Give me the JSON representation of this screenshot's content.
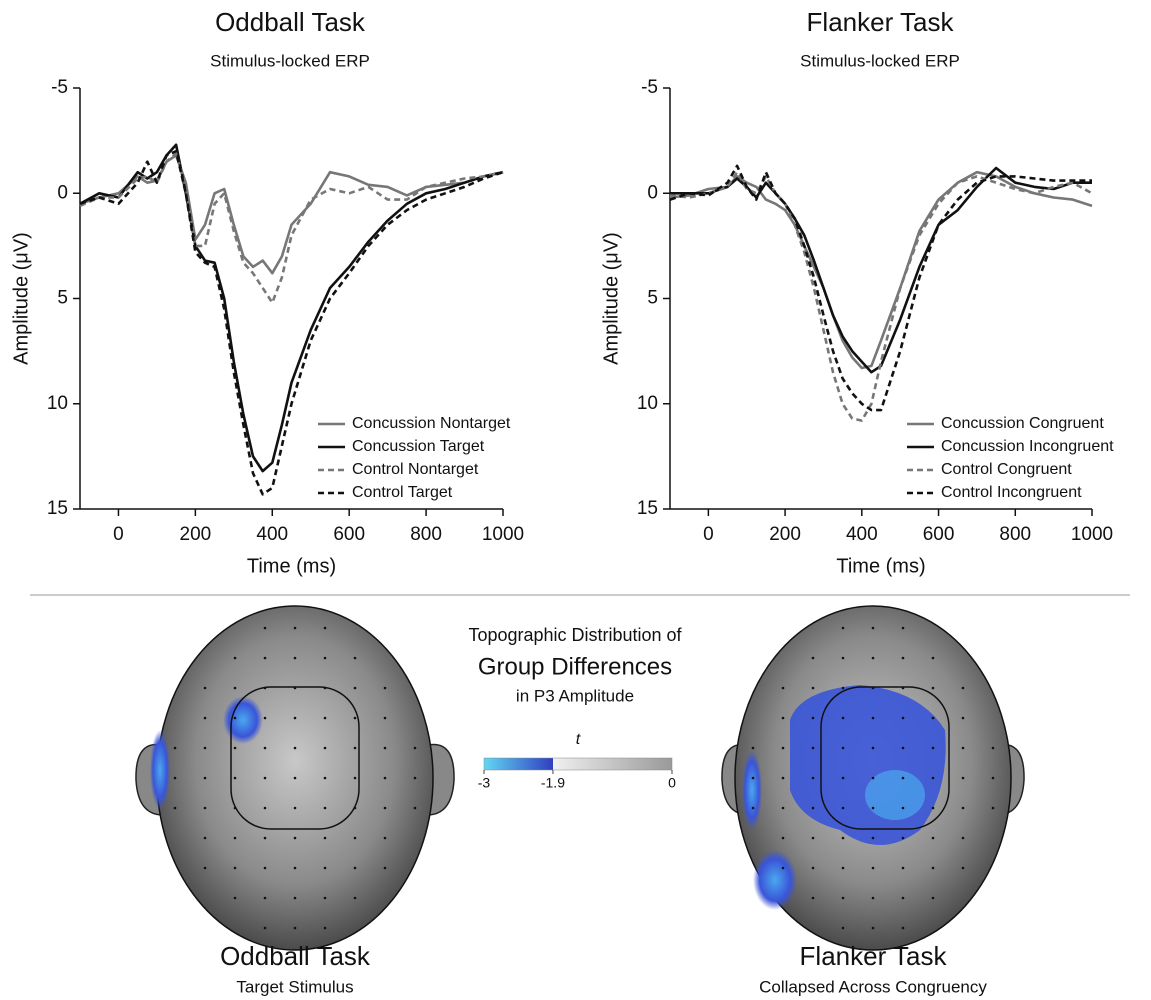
{
  "chart_data": [
    {
      "type": "line",
      "title": "Oddball Task",
      "subtitle": "Stimulus-locked ERP",
      "x_label": "Time (ms)",
      "y_label": "Amplitude (μV)",
      "xlim": [
        -100,
        1000
      ],
      "xticks": [
        0,
        200,
        400,
        600,
        800,
        1000
      ],
      "ylim": [
        -5,
        15
      ],
      "yticks": [
        -5,
        0,
        5,
        10,
        15
      ],
      "y_inverted": true,
      "legend": "lower right",
      "x": [
        -100,
        -50,
        0,
        50,
        75,
        100,
        125,
        150,
        175,
        200,
        225,
        250,
        275,
        300,
        325,
        350,
        375,
        400,
        425,
        450,
        500,
        550,
        600,
        650,
        700,
        750,
        800,
        850,
        900,
        950,
        1000
      ],
      "series": [
        {
          "name": "Concussion Nontarget",
          "color": "#777777",
          "style": "solid",
          "values": [
            0.5,
            0.2,
            0,
            -0.8,
            -0.5,
            -0.6,
            -1.5,
            -1.8,
            -0.5,
            2.2,
            1.5,
            0,
            -0.2,
            1.5,
            3.0,
            3.5,
            3.2,
            3.8,
            3.0,
            1.5,
            0.5,
            -1.0,
            -0.8,
            -0.4,
            -0.3,
            0.1,
            -0.3,
            -0.4,
            -0.5,
            -0.8,
            -1.0
          ]
        },
        {
          "name": "Concussion Target",
          "color": "#111111",
          "style": "solid",
          "values": [
            0.5,
            0,
            0.2,
            -1.0,
            -0.7,
            -1.0,
            -1.8,
            -2.3,
            0,
            2.5,
            3.2,
            3.3,
            5,
            8,
            10.5,
            12.5,
            13.2,
            12.8,
            11,
            9,
            6.5,
            4.5,
            3.5,
            2.3,
            1.3,
            0.5,
            0,
            -0.2,
            -0.5,
            -0.8,
            -1.0
          ]
        },
        {
          "name": "Control Nontarget",
          "color": "#777777",
          "style": "dashed",
          "values": [
            0.6,
            0.2,
            0.2,
            -0.7,
            -0.8,
            -0.5,
            -1.5,
            -1.9,
            -0.3,
            2.5,
            2.5,
            0.5,
            0,
            1.8,
            3.3,
            3.8,
            4.5,
            5.2,
            4,
            2,
            0.3,
            -0.2,
            0,
            -0.3,
            0.3,
            0.3,
            -0.3,
            -0.5,
            -0.7,
            -0.8,
            -1.0
          ]
        },
        {
          "name": "Control Target",
          "color": "#111111",
          "style": "dashed",
          "values": [
            0.5,
            0.2,
            0.5,
            -0.5,
            -1.5,
            -0.5,
            -1.8,
            -2.0,
            0,
            2.8,
            3.3,
            3.5,
            5.5,
            8.5,
            11,
            13.3,
            14.3,
            14,
            12,
            10,
            7,
            5,
            3.8,
            2.5,
            1.5,
            0.8,
            0.3,
            0,
            -0.3,
            -0.7,
            -1.0
          ]
        }
      ]
    },
    {
      "type": "line",
      "title": "Flanker Task",
      "subtitle": "Stimulus-locked ERP",
      "x_label": "Time (ms)",
      "y_label": "Amplitude (μV)",
      "xlim": [
        -100,
        1000
      ],
      "xticks": [
        0,
        200,
        400,
        600,
        800,
        1000
      ],
      "ylim": [
        -5,
        15
      ],
      "yticks": [
        -5,
        0,
        5,
        10,
        15
      ],
      "y_inverted": true,
      "legend": "lower right",
      "x": [
        -100,
        -50,
        0,
        50,
        75,
        100,
        125,
        150,
        175,
        200,
        225,
        250,
        275,
        300,
        325,
        350,
        375,
        400,
        425,
        450,
        500,
        550,
        600,
        650,
        700,
        750,
        800,
        850,
        900,
        950,
        1000
      ],
      "series": [
        {
          "name": "Concussion Congruent",
          "color": "#777777",
          "style": "solid",
          "values": [
            0.2,
            0.1,
            -0.2,
            -0.3,
            -0.8,
            -0.5,
            -0.3,
            0.3,
            0.5,
            0.8,
            1.5,
            2.5,
            3.5,
            4.5,
            5.8,
            7,
            7.8,
            8.3,
            8.2,
            7,
            4.5,
            1.8,
            0.3,
            -0.5,
            -1.0,
            -0.8,
            -0.3,
            0,
            0.2,
            0.3,
            0.6
          ]
        },
        {
          "name": "Concussion Incongruent",
          "color": "#111111",
          "style": "solid",
          "values": [
            0,
            0,
            0,
            -0.3,
            -0.7,
            -0.3,
            0.2,
            -0.5,
            0,
            0.5,
            1.2,
            2,
            3.2,
            4.5,
            5.8,
            6.8,
            7.5,
            8.0,
            8.5,
            8.2,
            6,
            3.5,
            1.5,
            0.8,
            -0.3,
            -1.2,
            -0.5,
            -0.3,
            -0.2,
            -0.5,
            -0.5
          ]
        },
        {
          "name": "Control Congruent",
          "color": "#777777",
          "style": "dashed",
          "values": [
            0.1,
            0.2,
            0,
            -0.3,
            -1.0,
            -0.2,
            0,
            -0.8,
            0,
            0.5,
            1.5,
            2.8,
            4.5,
            6.5,
            8.5,
            10,
            10.7,
            10.8,
            10,
            8,
            4.5,
            2,
            0.5,
            -0.5,
            -0.8,
            -0.5,
            -0.2,
            0,
            -0.3,
            -0.5,
            0
          ]
        },
        {
          "name": "Control Incongruent",
          "color": "#111111",
          "style": "dashed",
          "values": [
            0.3,
            0,
            0.1,
            -0.5,
            -1.3,
            -0.3,
            0.3,
            -1.0,
            0,
            0.5,
            1.2,
            2.5,
            4,
            5.8,
            7.5,
            8.8,
            9.5,
            10,
            10.3,
            10.3,
            7.5,
            4,
            1.5,
            0.3,
            -0.5,
            -0.8,
            -0.8,
            -0.7,
            -0.6,
            -0.6,
            -0.6
          ]
        }
      ]
    }
  ],
  "topography": {
    "heading": [
      "Topographic Distribution of",
      "Group Differences",
      "in P3 Amplitude"
    ],
    "colorbar": {
      "label": "t",
      "lim": [
        -3,
        0
      ],
      "ticks": [
        -3,
        -1.9,
        0
      ]
    },
    "maps": [
      {
        "title": "Oddball Task",
        "subtitle": "Target Stimulus"
      },
      {
        "title": "Flanker Task",
        "subtitle": "Collapsed Across Congruency"
      }
    ]
  }
}
